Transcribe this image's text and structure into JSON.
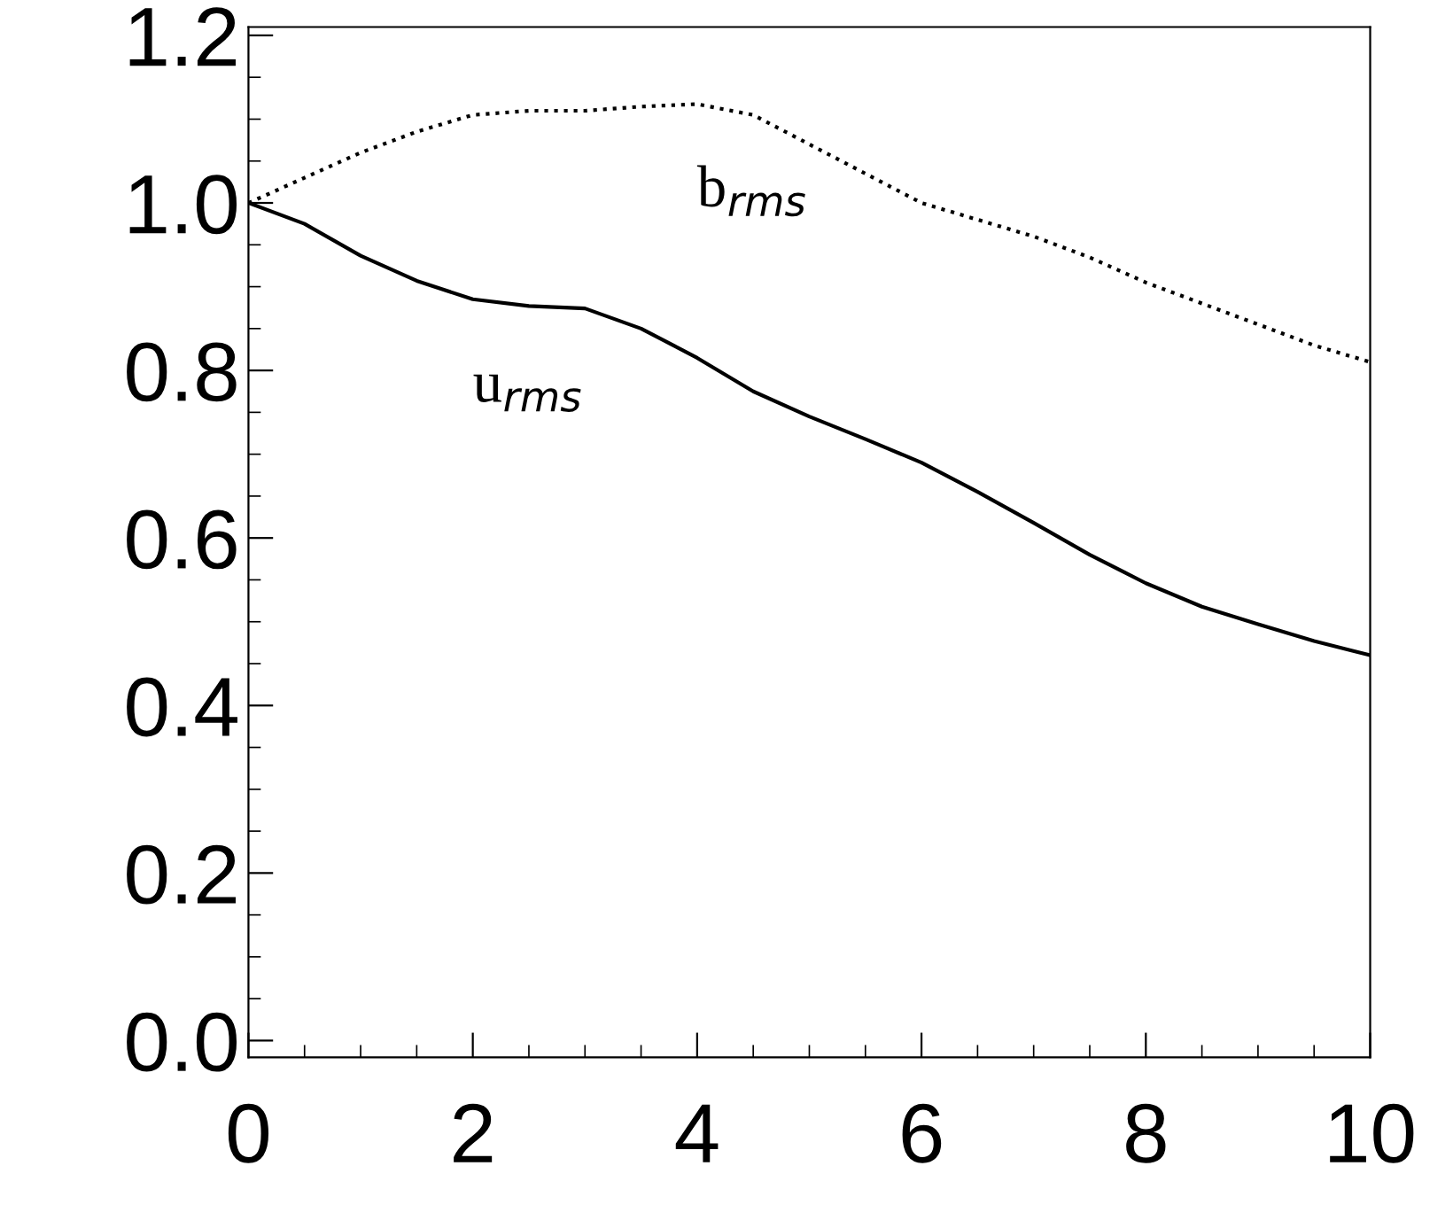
{
  "chart_data": {
    "type": "line",
    "x": [
      0,
      0.5,
      1,
      1.5,
      2,
      2.5,
      3,
      3.5,
      4,
      4.5,
      5,
      5.5,
      6,
      6.5,
      7,
      7.5,
      8,
      8.5,
      9,
      9.5,
      10
    ],
    "series": [
      {
        "name": "u$_{rms}$",
        "color": "#000000",
        "line_style": "solid",
        "values": [
          1.0,
          0.975,
          0.937,
          0.907,
          0.885,
          0.877,
          0.874,
          0.85,
          0.815,
          0.775,
          0.745,
          0.718,
          0.69,
          0.655,
          0.618,
          0.58,
          0.546,
          0.518,
          0.497,
          0.477,
          0.46
        ]
      },
      {
        "name": "b$_{rms}$",
        "color": "#000000",
        "line_style": "dotted",
        "values": [
          1.0,
          1.03,
          1.06,
          1.085,
          1.105,
          1.11,
          1.11,
          1.115,
          1.118,
          1.105,
          1.07,
          1.035,
          1.0,
          0.98,
          0.96,
          0.935,
          0.905,
          0.88,
          0.855,
          0.83,
          0.81
        ]
      }
    ],
    "xlim": [
      0,
      10
    ],
    "xticks": [
      0,
      2,
      4,
      6,
      8,
      10
    ],
    "ylim": [
      -0.02,
      1.21
    ],
    "yticks": [
      {
        "value": 0,
        "label": "0.0"
      },
      0.2,
      0.4,
      0.6,
      0.8,
      {
        "value": 1,
        "label": "1.0"
      },
      1.2
    ],
    "grid": false
  }
}
